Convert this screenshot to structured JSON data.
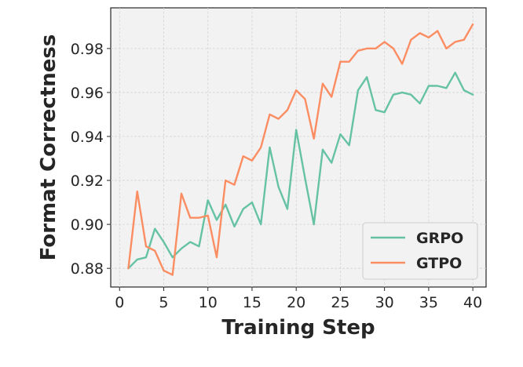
{
  "chart_data": {
    "type": "line",
    "xlabel": "Training Step",
    "ylabel": "Format Correctness",
    "xlim": [
      -1,
      41.5
    ],
    "ylim": [
      0.8715,
      0.9985
    ],
    "xticks": [
      0,
      5,
      10,
      15,
      20,
      25,
      30,
      35,
      40
    ],
    "yticks": [
      0.88,
      0.9,
      0.92,
      0.94,
      0.96,
      0.98
    ],
    "ytick_labels": [
      "0.88",
      "0.90",
      "0.92",
      "0.94",
      "0.96",
      "0.98"
    ],
    "grid": true,
    "legend_position": "lower-right",
    "x": [
      1,
      2,
      3,
      4,
      5,
      6,
      7,
      8,
      9,
      10,
      11,
      12,
      13,
      14,
      15,
      16,
      17,
      18,
      19,
      20,
      21,
      22,
      23,
      24,
      25,
      26,
      27,
      28,
      29,
      30,
      31,
      32,
      33,
      34,
      35,
      36,
      37,
      38,
      39,
      40
    ],
    "series": [
      {
        "name": "GRPO",
        "color": "#66c2a5",
        "values": [
          0.88,
          0.884,
          0.885,
          0.898,
          0.892,
          0.885,
          0.889,
          0.892,
          0.89,
          0.911,
          0.902,
          0.909,
          0.899,
          0.907,
          0.91,
          0.9,
          0.935,
          0.917,
          0.907,
          0.943,
          0.921,
          0.9,
          0.934,
          0.928,
          0.941,
          0.936,
          0.961,
          0.967,
          0.952,
          0.951,
          0.959,
          0.96,
          0.959,
          0.955,
          0.963,
          0.963,
          0.962,
          0.969,
          0.961,
          0.959
        ]
      },
      {
        "name": "GTPO",
        "color": "#fc8d62",
        "values": [
          0.88,
          0.915,
          0.89,
          0.888,
          0.879,
          0.877,
          0.914,
          0.903,
          0.903,
          0.904,
          0.885,
          0.92,
          0.918,
          0.931,
          0.929,
          0.935,
          0.95,
          0.948,
          0.952,
          0.961,
          0.957,
          0.939,
          0.964,
          0.958,
          0.974,
          0.974,
          0.979,
          0.98,
          0.98,
          0.983,
          0.98,
          0.973,
          0.984,
          0.987,
          0.985,
          0.988,
          0.98,
          0.983,
          0.984,
          0.991
        ]
      }
    ]
  }
}
